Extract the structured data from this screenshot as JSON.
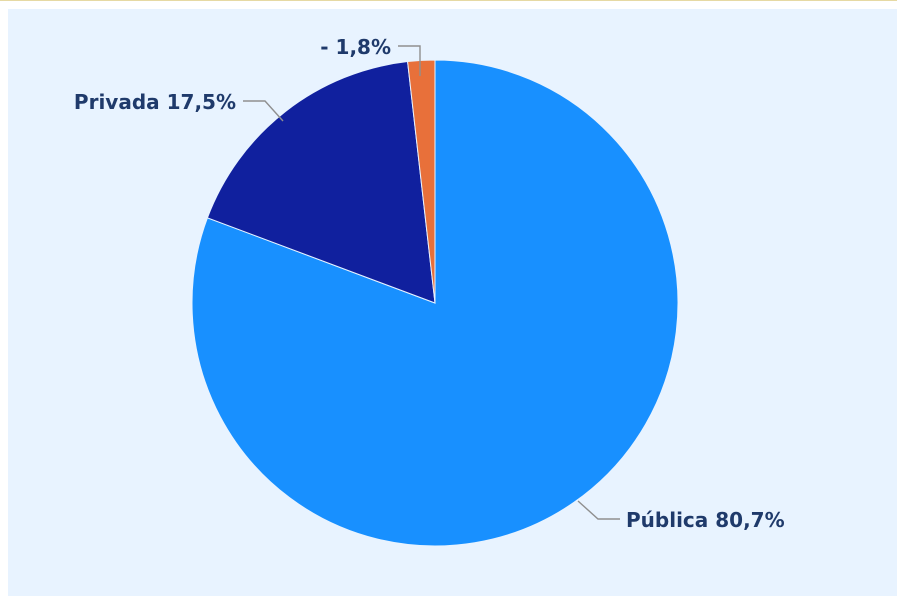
{
  "chart_data": {
    "type": "pie",
    "slices": [
      {
        "label": "Pública",
        "value": 80.7,
        "display": "80,7%",
        "color": "#1890ff"
      },
      {
        "label": "Privada",
        "value": 17.5,
        "display": "17,5%",
        "color": "#10209e"
      },
      {
        "label": "-",
        "value": 1.8,
        "display": "1,8%",
        "color": "#e8703a"
      }
    ]
  }
}
